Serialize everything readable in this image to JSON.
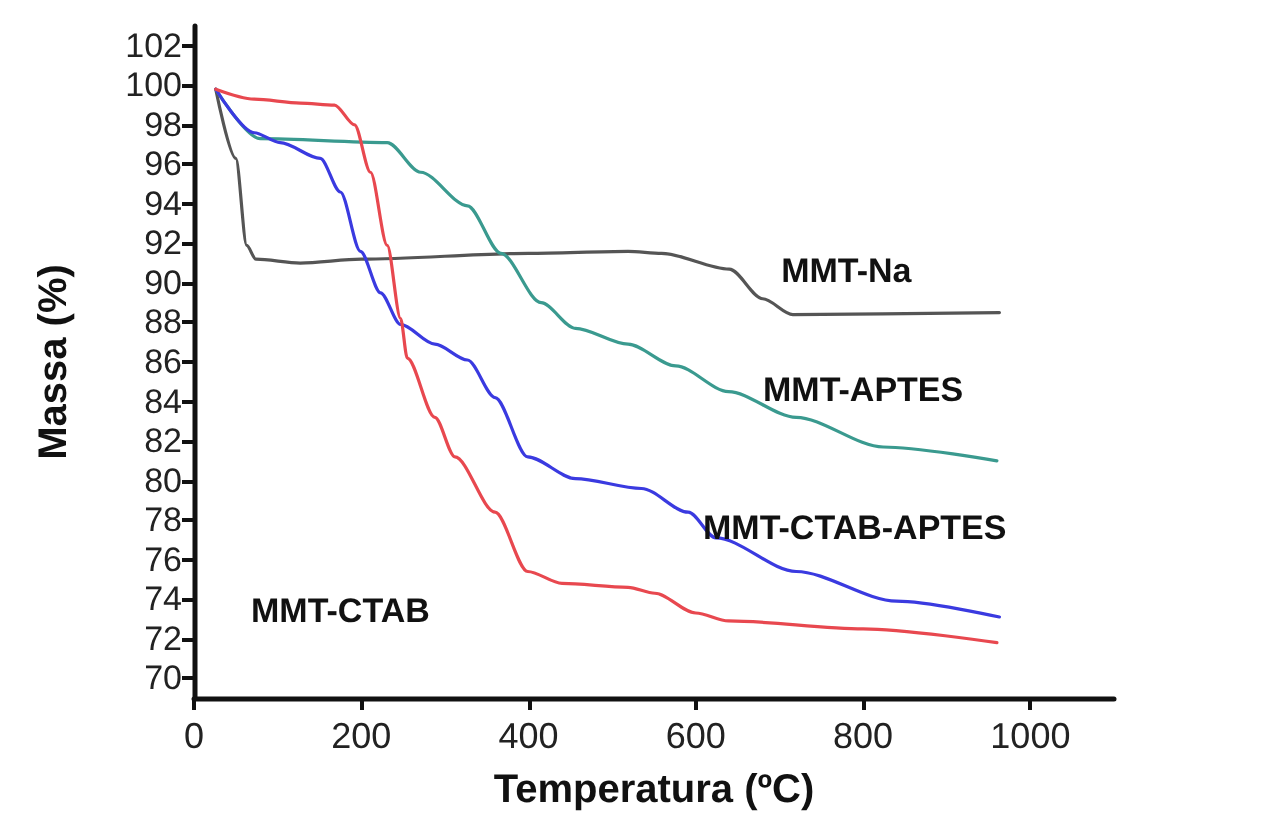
{
  "chart_data": {
    "type": "line",
    "xlabel": "Temperatura (ºC)",
    "ylabel": "Massa (%)",
    "xlim": [
      0,
      1100
    ],
    "xticks": [
      0,
      200,
      400,
      600,
      800,
      1000
    ],
    "ylim": [
      69,
      103
    ],
    "yticks": [
      70,
      72,
      74,
      76,
      78,
      80,
      82,
      84,
      86,
      88,
      90,
      92,
      94,
      96,
      98,
      100,
      102
    ],
    "grid": false,
    "legend": false,
    "marker": "none",
    "line_style": "solid",
    "series": [
      {
        "name": "MMT-Na",
        "color": "#555555",
        "x": [
          26,
          50,
          63,
          74,
          127,
          200,
          400,
          519,
          559,
          640,
          680,
          716,
          963
        ],
        "values": [
          99.8,
          96.3,
          91.9,
          91.2,
          91.0,
          91.2,
          91.5,
          91.6,
          91.5,
          90.7,
          89.2,
          88.4,
          88.5
        ]
      },
      {
        "name": "MMT-APTES",
        "color": "#3a9a8f",
        "x": [
          26,
          79,
          231,
          271,
          327,
          367,
          415,
          456,
          519,
          576,
          639,
          720,
          824,
          960
        ],
        "values": [
          99.8,
          97.3,
          97.1,
          95.6,
          93.9,
          91.5,
          89.0,
          87.7,
          86.9,
          85.8,
          84.5,
          83.2,
          81.7,
          81.0
        ]
      },
      {
        "name": "MMT-CTAB-APTES",
        "color": "#3a3ae0",
        "x": [
          26,
          72,
          103,
          151,
          175,
          199,
          223,
          247,
          288,
          327,
          360,
          399,
          456,
          535,
          591,
          624,
          720,
          840,
          963
        ],
        "values": [
          99.8,
          97.6,
          97.1,
          96.3,
          94.6,
          91.6,
          89.5,
          87.9,
          86.9,
          86.1,
          84.2,
          81.2,
          80.1,
          79.6,
          78.4,
          77.1,
          75.4,
          73.9,
          73.1
        ]
      },
      {
        "name": "MMT-CTAB",
        "color": "#e8484f",
        "x": [
          26,
          72,
          127,
          168,
          192,
          211,
          231,
          247,
          255,
          288,
          312,
          360,
          399,
          440,
          519,
          551,
          600,
          639,
          800,
          960
        ],
        "values": [
          99.8,
          99.3,
          99.1,
          99.0,
          98.0,
          95.6,
          91.9,
          88.2,
          86.2,
          83.2,
          81.2,
          78.4,
          75.4,
          74.8,
          74.6,
          74.3,
          73.3,
          72.9,
          72.5,
          71.8
        ]
      }
    ]
  }
}
